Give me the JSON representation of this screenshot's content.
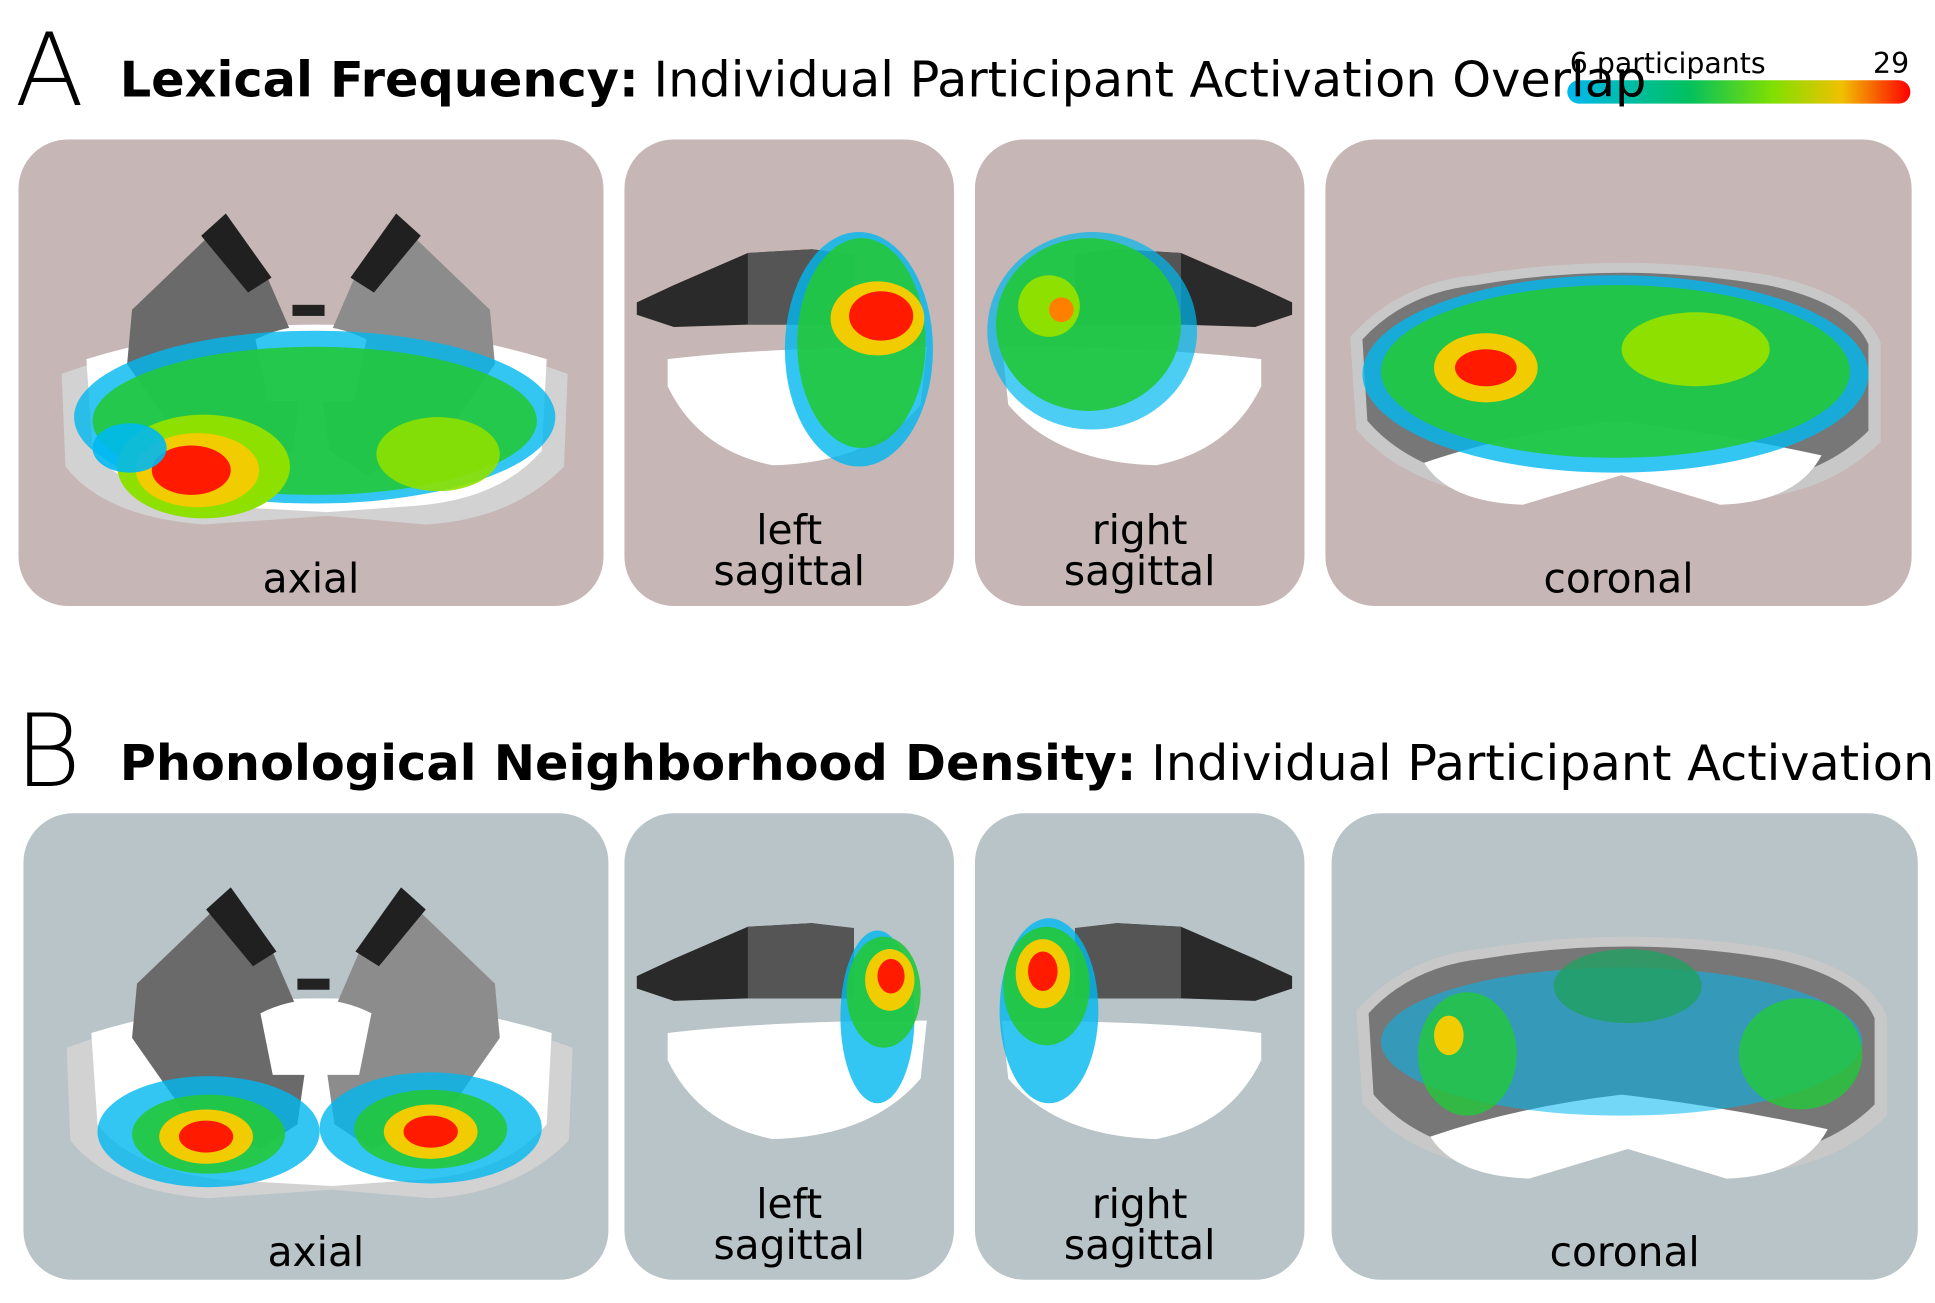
{
  "colorbar": {
    "min_label": "6 participants",
    "max_label": "29"
  },
  "panels": [
    {
      "letter": "A",
      "title_bold": "Lexical Frequency:",
      "title_rest": "Individual Participant Activation Overlap",
      "views": [
        {
          "label": [
            "axial"
          ]
        },
        {
          "label": [
            "left",
            "sagittal"
          ]
        },
        {
          "label": [
            "right",
            "sagittal"
          ]
        },
        {
          "label": [
            "coronal"
          ]
        }
      ]
    },
    {
      "letter": "B",
      "title_bold": "Phonological Neighborhood Density:",
      "title_rest": "Individual Participant Activation Overlap",
      "views": [
        {
          "label": [
            "axial"
          ]
        },
        {
          "label": [
            "left",
            "sagittal"
          ]
        },
        {
          "label": [
            "right",
            "sagittal"
          ]
        },
        {
          "label": [
            "coronal"
          ]
        }
      ]
    }
  ]
}
